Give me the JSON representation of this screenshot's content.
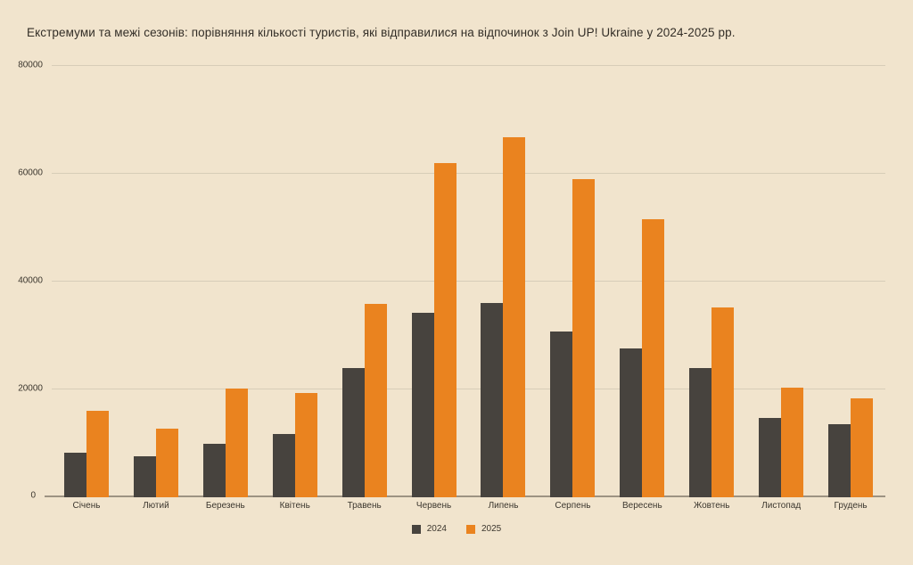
{
  "page": {
    "background_color": "#f1e4cd",
    "text_color": "#3b362e",
    "gridline_color": "#d7cdb8",
    "axis_line_color": "#9d9382"
  },
  "chart_data": {
    "type": "bar",
    "title": "Екстремуми та межі сезонів: порівняння кількості туристів, які відправилися на відпочинок з Join UP! Ukraine у 2024-2025 рр.",
    "categories": [
      "Січень",
      "Лютий",
      "Березень",
      "Квітень",
      "Травень",
      "Червень",
      "Липень",
      "Серпень",
      "Вересень",
      "Жовтень",
      "Листопад",
      "Грудень"
    ],
    "series": [
      {
        "name": "2024",
        "color": "#47433e",
        "values": [
          8200,
          7600,
          10000,
          11700,
          24000,
          34200,
          36000,
          30700,
          27600,
          24000,
          14700,
          13500
        ]
      },
      {
        "name": "2025",
        "color": "#ea831f",
        "values": [
          16000,
          12700,
          20200,
          19300,
          35800,
          62000,
          66800,
          59000,
          51600,
          35200,
          20300,
          18400
        ]
      }
    ],
    "xlabel": "",
    "ylabel": "",
    "ylim": [
      0,
      80000
    ],
    "yticks": [
      0,
      20000,
      40000,
      60000,
      80000
    ],
    "grid": "horizontal",
    "legend_position": "bottom-center"
  }
}
